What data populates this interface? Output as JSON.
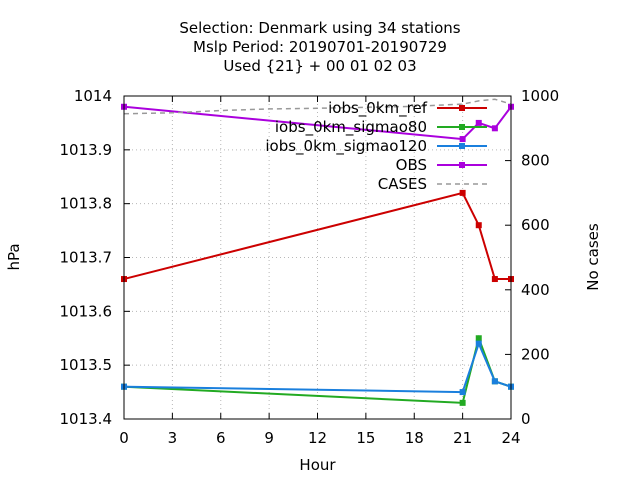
{
  "chart_data": {
    "type": "line",
    "title_lines": [
      "Selection: Denmark using    34 stations",
      "Mslp   Period: 20190701-20190729",
      "Used {21} + 00 01 02 03"
    ],
    "xlabel": "Hour",
    "ylabel": "hPa",
    "y2label": "No cases",
    "xlim": [
      0,
      24
    ],
    "ylim": [
      1013.4,
      1014.0
    ],
    "y2lim": [
      0,
      1000
    ],
    "xticks": [
      "0",
      "3",
      "6",
      "9",
      "12",
      "15",
      "18",
      "21",
      "24"
    ],
    "yticks": [
      "1013.4",
      "1013.5",
      "1013.6",
      "1013.7",
      "1013.8",
      "1013.9",
      "1014"
    ],
    "y2ticks": [
      "0",
      "200",
      "400",
      "600",
      "800",
      "1000"
    ],
    "grid": true,
    "legend_position": "top-right",
    "series": [
      {
        "name": "iobs_0km_ref",
        "color": "#cc0000",
        "marker": "square",
        "x": [
          0,
          21,
          22,
          23,
          24
        ],
        "y": [
          1013.66,
          1013.82,
          1013.76,
          1013.66,
          1013.66
        ]
      },
      {
        "name": "iobs_0km_sigmao80",
        "color": "#22aa22",
        "marker": "square",
        "x": [
          0,
          21,
          22,
          23,
          24
        ],
        "y": [
          1013.46,
          1013.43,
          1013.55,
          1013.47,
          1013.46
        ]
      },
      {
        "name": "iobs_0km_sigmao120",
        "color": "#1a7fdd",
        "marker": "square",
        "x": [
          0,
          21,
          22,
          23,
          24
        ],
        "y": [
          1013.46,
          1013.45,
          1013.54,
          1013.47,
          1013.46
        ]
      },
      {
        "name": "OBS",
        "color": "#aa00dd",
        "marker": "square",
        "x": [
          0,
          21,
          22,
          23,
          24
        ],
        "y": [
          1013.98,
          1013.92,
          1013.95,
          1013.94,
          1013.98
        ]
      },
      {
        "name": "CASES",
        "color": "#999999",
        "dash": true,
        "axis": "y2",
        "x": [
          0,
          3,
          6,
          9,
          12,
          15,
          18,
          21,
          22,
          23,
          24
        ],
        "y": [
          945,
          948,
          955,
          960,
          962,
          965,
          968,
          975,
          985,
          990,
          975
        ]
      }
    ]
  }
}
